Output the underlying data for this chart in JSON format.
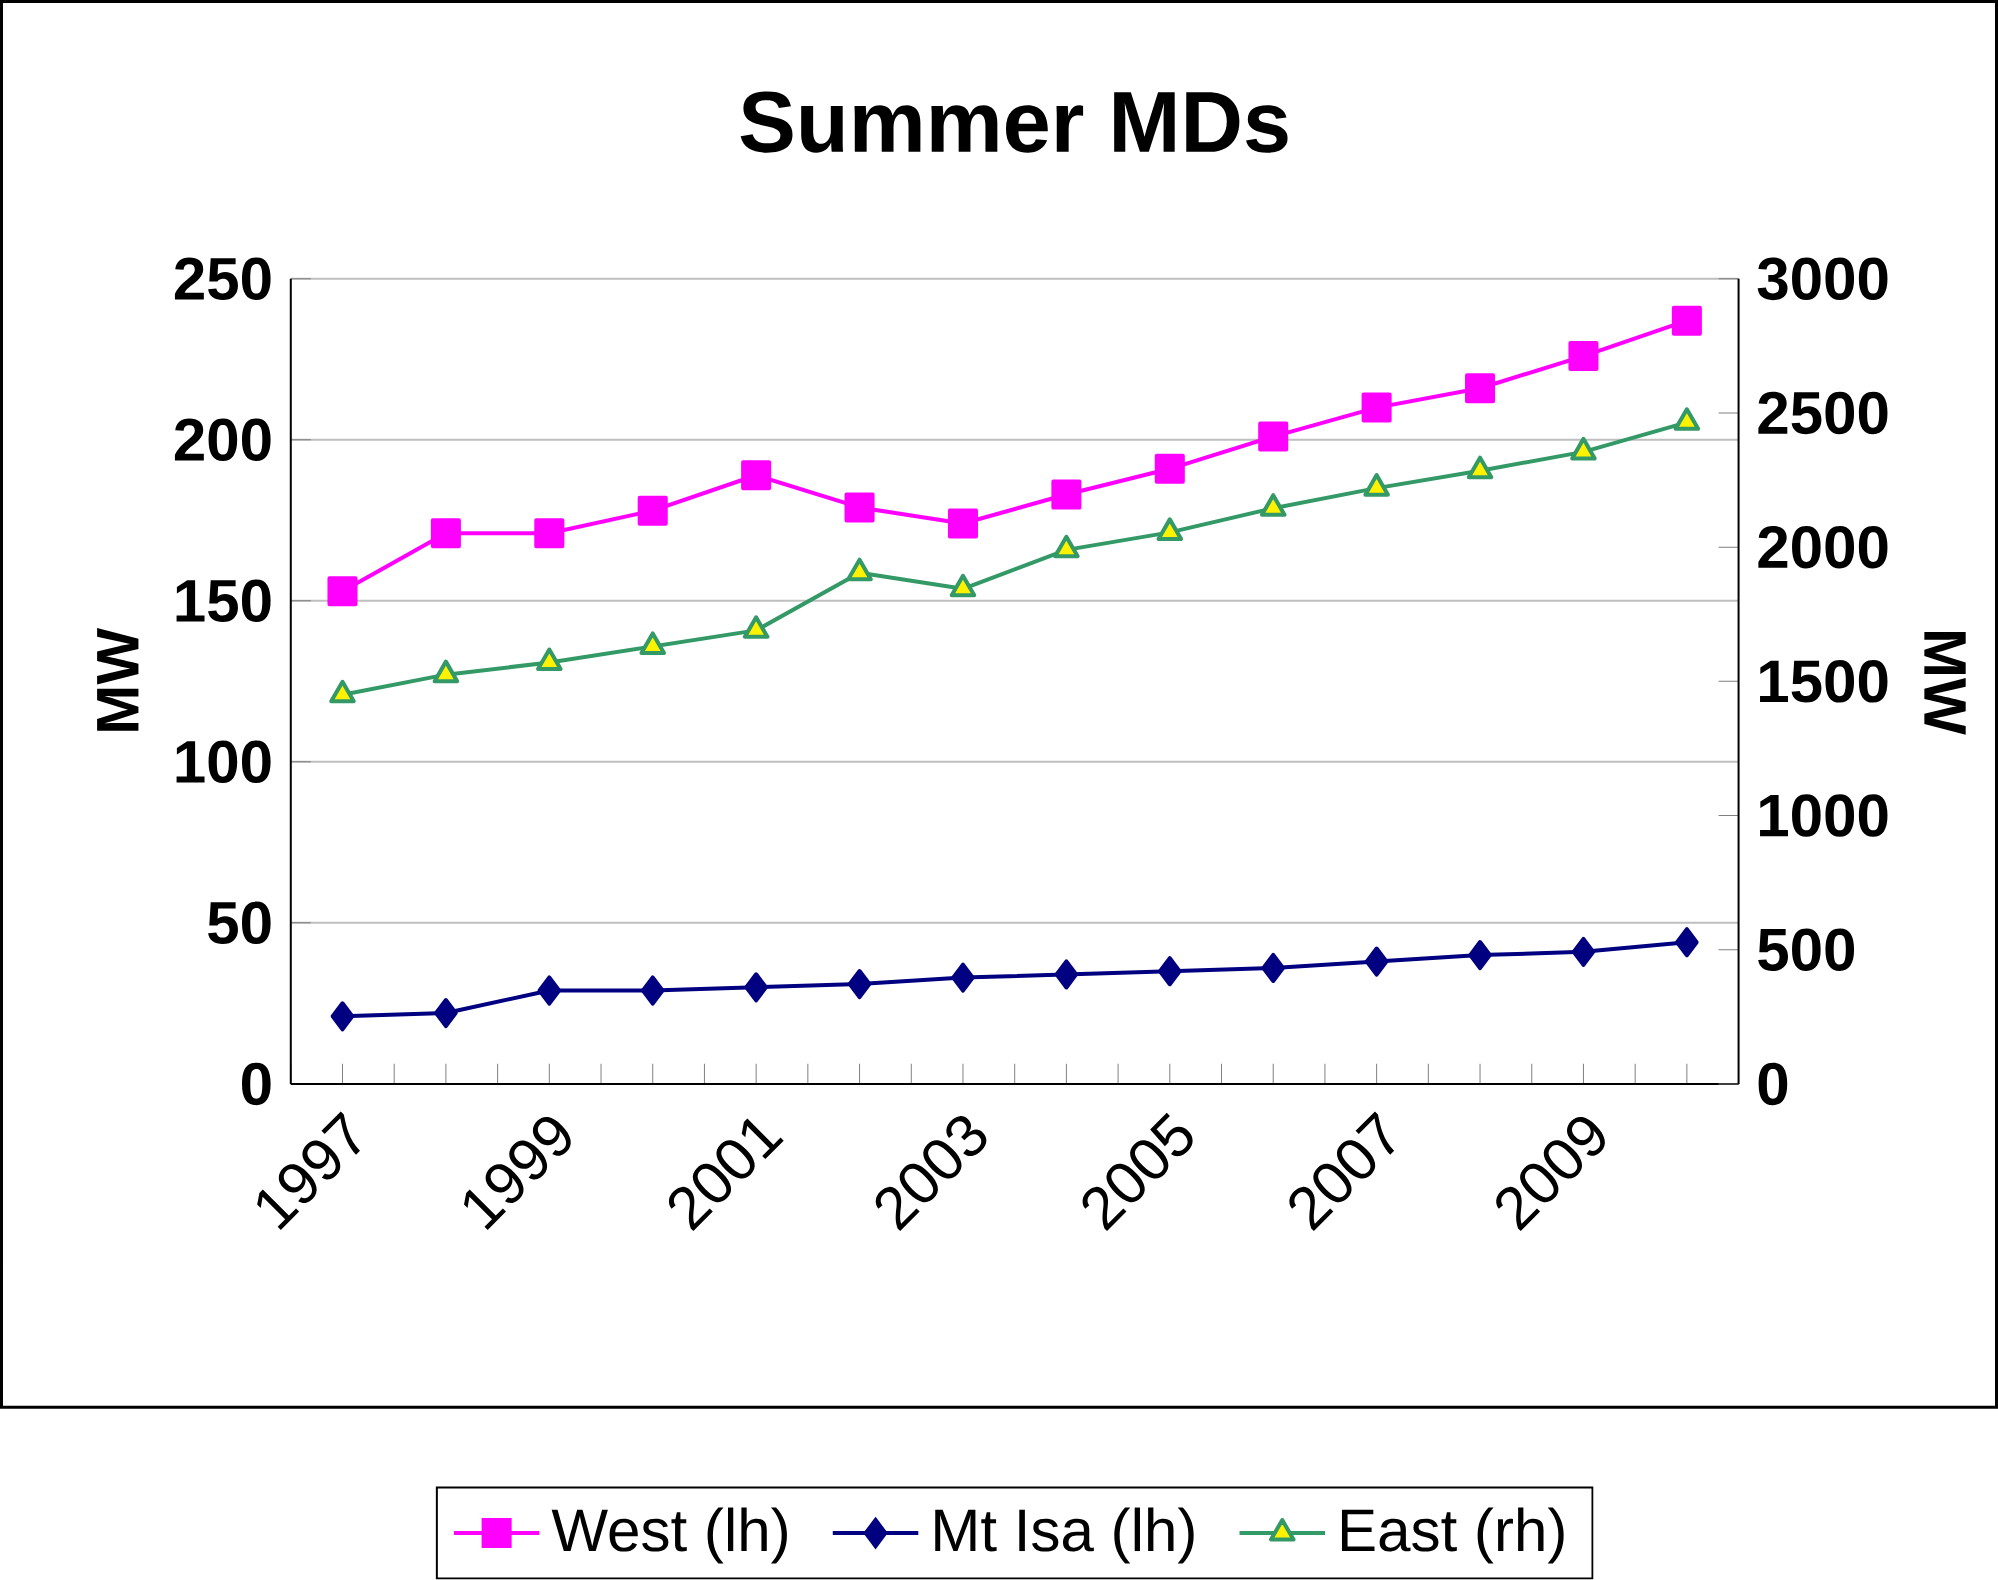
{
  "chart_data": {
    "type": "line",
    "title": "Summer MDs",
    "ylabel": "MW",
    "y2label": "MW",
    "categories": [
      "1997",
      null,
      "1999",
      null,
      "2001",
      null,
      "2003",
      null,
      "2005",
      null,
      "2007",
      null,
      "2009",
      null
    ],
    "series": [
      {
        "name": "West (lh)",
        "color": "#ff00ff",
        "marker": "square",
        "values": [
          153,
          171,
          171,
          178,
          189,
          179,
          174,
          183,
          191,
          201,
          210,
          216,
          226,
          237
        ]
      },
      {
        "name": "Mt Isa (lh)",
        "color": "#000080",
        "marker": "diamond",
        "values": [
          21,
          22,
          29,
          29,
          30,
          31,
          33,
          34,
          35,
          36,
          38,
          40,
          41,
          44
        ]
      },
      {
        "name": "East (rh)",
        "color": "#339966",
        "marker": "triangle",
        "axis": "y2",
        "values": [
          1450,
          1525,
          1570,
          1630,
          1690,
          1905,
          1845,
          1990,
          2055,
          2145,
          2220,
          2285,
          2355,
          2465
        ]
      }
    ],
    "ylim": [
      0,
      250
    ],
    "yticks": [
      0,
      50,
      100,
      150,
      200,
      250
    ],
    "y2lim": [
      0,
      3000
    ],
    "y2ticks": [
      0,
      500,
      1000,
      1500,
      2000,
      2500,
      3000
    ],
    "grid": "y",
    "legend": "bottom"
  }
}
